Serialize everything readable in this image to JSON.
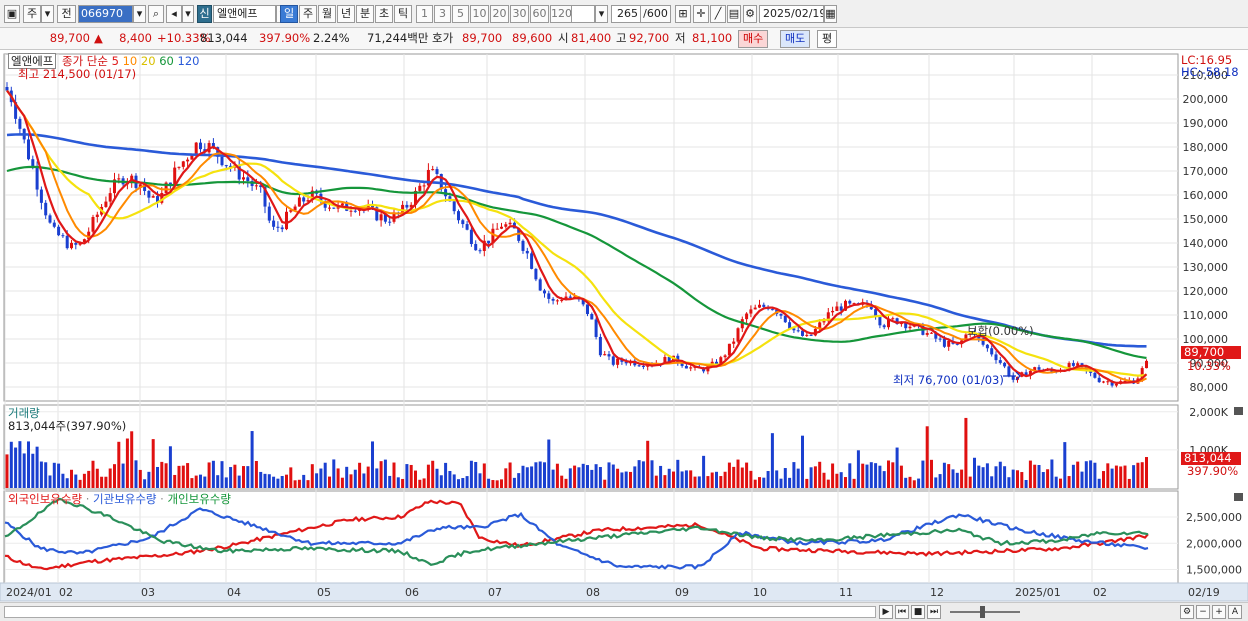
{
  "toolbar": {
    "mode": "주",
    "prefix": "전",
    "code": "066970",
    "new_badge": "신",
    "stock_name": "엘앤에프",
    "periods": [
      "일",
      "주",
      "월",
      "년",
      "분",
      "초",
      "틱"
    ],
    "active_period": "일",
    "intervals": [
      "1",
      "3",
      "5",
      "10",
      "20",
      "30",
      "60",
      "120"
    ],
    "count": "265",
    "count_max": "/600",
    "date": "2025/02/19"
  },
  "quote": {
    "price": "89,700",
    "change": "8,400",
    "change_pct": "+10.33%",
    "volume": "813,044",
    "volume_ratio": "397.90%",
    "turnover": "2.24%",
    "amount": "71,244백만",
    "ask_label": "호가",
    "ask": "89,700",
    "bid": "89,600",
    "open_label": "시",
    "open": "81,400",
    "high_label": "고",
    "high": "92,700",
    "low_label": "저",
    "low": "81,100",
    "buy_label": "매수",
    "sell_label": "매도",
    "eval_label": "평"
  },
  "price_panel": {
    "stock_tag": "엘앤에프",
    "ma_label": "종가 단순",
    "ma_periods": [
      "5",
      "10",
      "20",
      "60",
      "120"
    ],
    "high_note": "최고 214,500 (01/17)",
    "low_note": "최저 76,700 (01/03)",
    "eq_note": "보합(0.00%)",
    "lc": "LC:16.95",
    "hc": "HC:-58.18",
    "price_tag": "89,700",
    "pct_tag": "10.33%",
    "y_ticks": [
      "210,000",
      "200,000",
      "190,000",
      "180,000",
      "170,000",
      "160,000",
      "150,000",
      "140,000",
      "130,000",
      "120,000",
      "110,000",
      "100,000",
      "90,000",
      "80,000"
    ]
  },
  "volume_panel": {
    "title": "거래량",
    "value_note": "813,044주(397.90%)",
    "y_ticks": [
      "2,000K",
      "1,000K"
    ],
    "vol_tag": "813,044",
    "ratio_tag": "397.90%"
  },
  "holdings_panel": {
    "labels": [
      "외국인보유수량",
      "기관보유수량",
      "개인보유수량"
    ],
    "y_ticks": [
      "2,500,000",
      "2,000,000",
      "1,500,000"
    ]
  },
  "x_axis": {
    "labels": [
      "2024/01",
      "02",
      "03",
      "04",
      "05",
      "06",
      "07",
      "08",
      "09",
      "10",
      "11",
      "12",
      "2025/01",
      "02"
    ],
    "current": "02/19"
  },
  "colors": {
    "ma5": "#e01818",
    "ma10": "#ff8a00",
    "ma20": "#f5e20e",
    "ma60": "#15963a",
    "ma120": "#2a5ad8",
    "up": "#e01010",
    "down": "#1a3fd0"
  },
  "chart_data": {
    "type": "line",
    "price_series": [
      {
        "month": "2024/01",
        "close": 200000
      },
      {
        "month": "2024/01",
        "close": 170000
      },
      {
        "month": "2024/01",
        "close": 140000
      },
      {
        "month": "02",
        "close": 140000
      },
      {
        "month": "02",
        "close": 165000
      },
      {
        "month": "03",
        "close": 155000
      },
      {
        "month": "03",
        "close": 175000
      },
      {
        "month": "04",
        "close": 180000
      },
      {
        "month": "04",
        "close": 165000
      },
      {
        "month": "04",
        "close": 145000
      },
      {
        "month": "05",
        "close": 160000
      },
      {
        "month": "05",
        "close": 155000
      },
      {
        "month": "06",
        "close": 152000
      },
      {
        "month": "06",
        "close": 170000
      },
      {
        "month": "07",
        "close": 150000
      },
      {
        "month": "07",
        "close": 135000
      },
      {
        "month": "07",
        "close": 145000
      },
      {
        "month": "08",
        "close": 115000
      },
      {
        "month": "08",
        "close": 90000
      },
      {
        "month": "09",
        "close": 90000
      },
      {
        "month": "09",
        "close": 85000
      },
      {
        "month": "10",
        "close": 110000
      },
      {
        "month": "10",
        "close": 100000
      },
      {
        "month": "11",
        "close": 115000
      },
      {
        "month": "11",
        "close": 105000
      },
      {
        "month": "12",
        "close": 100000
      },
      {
        "month": "12",
        "close": 95000
      },
      {
        "month": "2025/01",
        "close": 80000
      },
      {
        "month": "2025/01",
        "close": 88000
      },
      {
        "month": "02",
        "close": 82000
      },
      {
        "month": "02",
        "close": 89700
      }
    ],
    "ylim": [
      75000,
      215000
    ]
  }
}
